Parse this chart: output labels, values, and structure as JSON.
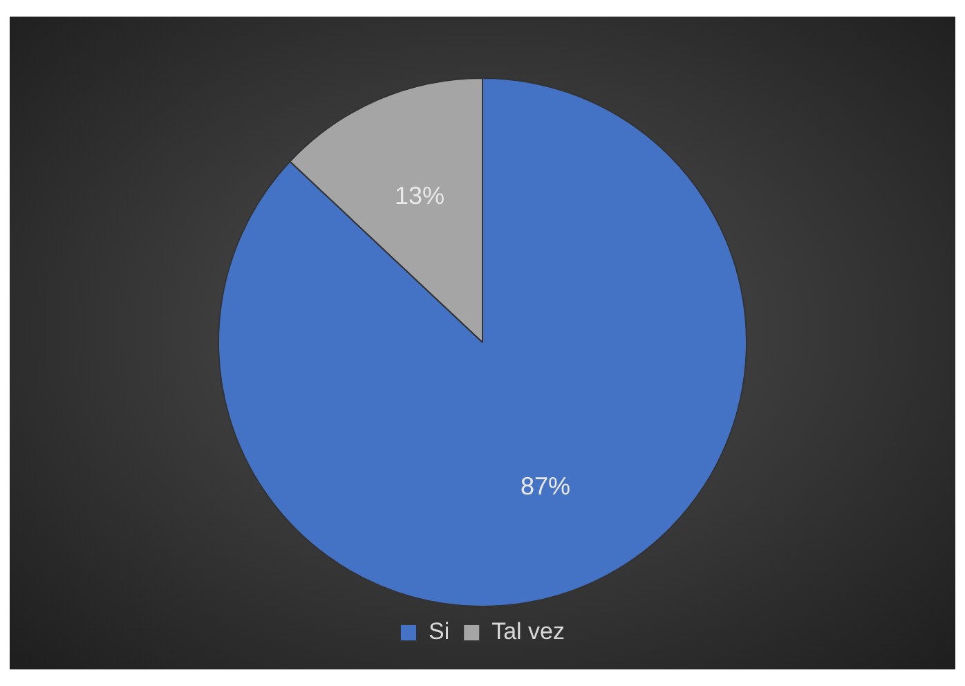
{
  "chart_data": {
    "type": "pie",
    "categories": [
      "Si",
      "Tal vez"
    ],
    "values": [
      87,
      13
    ],
    "colors": [
      "#4472c4",
      "#a5a5a5"
    ],
    "value_labels": [
      "87%",
      "13%"
    ],
    "legend": "bottom"
  }
}
